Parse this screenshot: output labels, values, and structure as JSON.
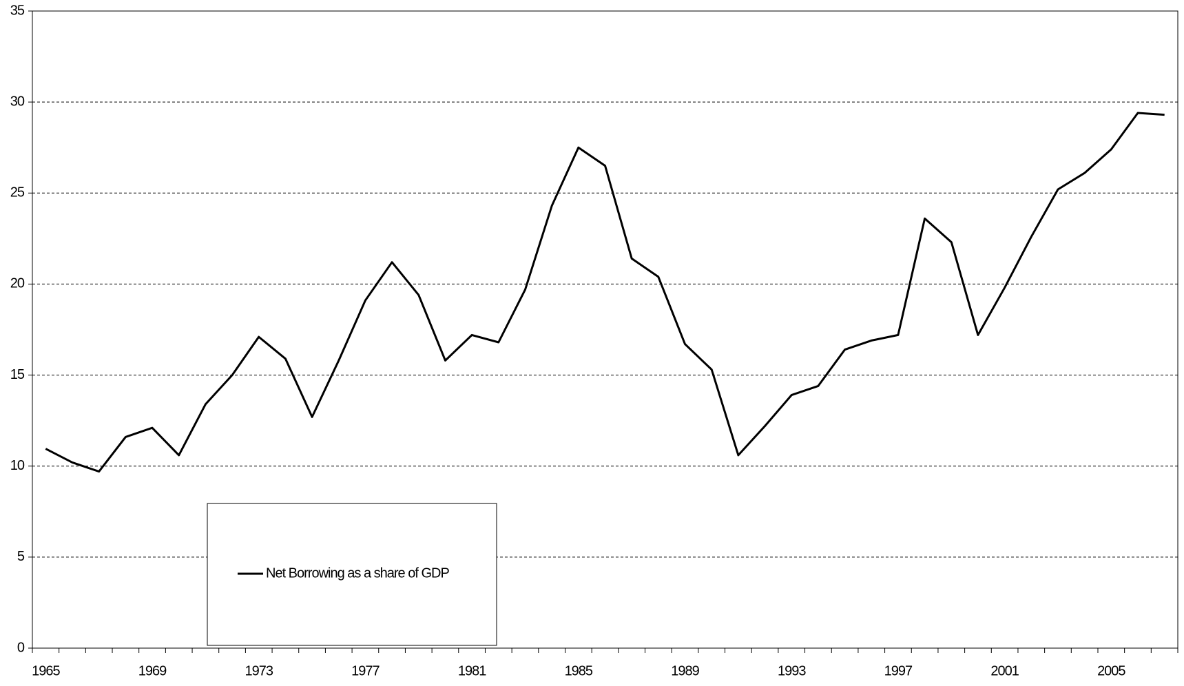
{
  "chart_data": {
    "type": "line",
    "categories": [
      "1965",
      null,
      null,
      null,
      "1969",
      null,
      null,
      null,
      "1973",
      null,
      null,
      null,
      "1977",
      null,
      null,
      null,
      "1981",
      null,
      null,
      null,
      "1985",
      null,
      null,
      null,
      "1989",
      null,
      null,
      null,
      "1993",
      null,
      null,
      null,
      "1997",
      null,
      null,
      null,
      "2001",
      null,
      null,
      null,
      "2005",
      null,
      null
    ],
    "series": [
      {
        "name": "Net Borrowing as a share of GDP",
        "color": "#000000",
        "values": [
          10.95,
          10.2,
          9.7,
          11.6,
          12.1,
          10.6,
          13.4,
          15.0,
          17.1,
          15.9,
          12.7,
          15.8,
          19.1,
          21.2,
          19.4,
          15.8,
          17.2,
          16.8,
          19.7,
          24.3,
          27.5,
          26.5,
          21.4,
          20.4,
          16.7,
          15.3,
          10.6,
          12.2,
          13.9,
          14.4,
          16.4,
          16.9,
          17.2,
          23.6,
          22.3,
          17.2,
          19.8,
          22.6,
          25.2,
          26.1,
          27.4,
          29.4,
          29.3
        ]
      }
    ],
    "ylim": [
      0,
      35
    ],
    "yticks": [
      0,
      5,
      10,
      15,
      20,
      25,
      30,
      35
    ],
    "grid": true
  }
}
